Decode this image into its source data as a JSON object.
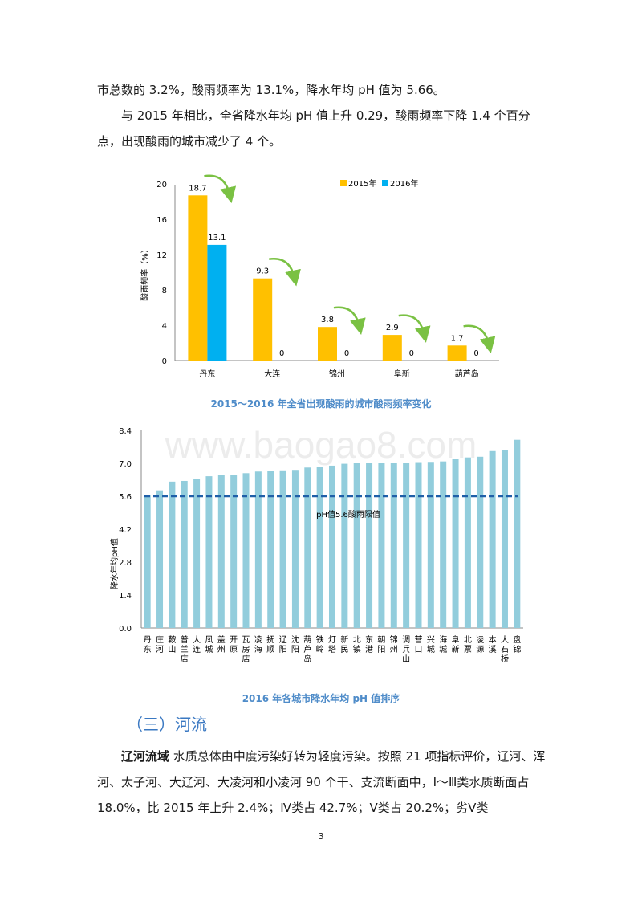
{
  "paragraphs": {
    "p1": "市总数的 3.2%，酸雨频率为 13.1%，降水年均 pH 值为 5.66。",
    "p2": "与 2015 年相比，全省降水年均 pH 值上升 0.29，酸雨频率下降 1.4 个百分点，出现酸雨的城市减少了 4 个。"
  },
  "captions": {
    "chart1": "2015～2016 年全省出现酸雨的城市酸雨频率变化",
    "chart2": "2016 年各城市降水年均 pH 值排序"
  },
  "section": {
    "title": "（三）河流"
  },
  "body": {
    "lead": "辽河流域",
    "text": "水质总体由中度污染好转为轻度污染。按照 21 项指标评价，辽河、浑河、太子河、大辽河、大凌河和小凌河 90 个干、支流断面中，Ⅰ～Ⅲ类水质断面占 18.0%，比 2015 年上升 2.4%；Ⅳ类占 42.7%；Ⅴ类占 20.2%；劣Ⅴ类"
  },
  "page_number": "3",
  "watermark": "www.baogao8.com",
  "colors": {
    "series_2015": "#ffc000",
    "series_2016": "#00b0f0",
    "arrow": "#7ac143",
    "ph_bar": "#92cddc",
    "threshold": "#1f5fa8",
    "caption": "#4f8cc9"
  },
  "chart_data": [
    {
      "type": "bar",
      "categories": [
        "丹东",
        "大连",
        "锦州",
        "阜新",
        "葫芦岛"
      ],
      "series": [
        {
          "name": "2015年",
          "values": [
            18.7,
            9.3,
            3.8,
            2.9,
            1.7
          ],
          "labels": [
            "18.7",
            "9.3",
            "3.8",
            "2.9",
            "1.7"
          ]
        },
        {
          "name": "2016年",
          "values": [
            13.1,
            0,
            0,
            0,
            0
          ],
          "labels": [
            "13.1",
            "0",
            "0",
            "0",
            "0"
          ]
        }
      ],
      "ylabel": "酸雨频率（%）",
      "ylim": [
        0,
        20
      ],
      "yticks": [
        "0",
        "4",
        "8",
        "12",
        "16",
        "20"
      ],
      "legend": "top-right",
      "grid": false
    },
    {
      "type": "bar",
      "categories": [
        "丹东",
        "庄河",
        "鞍山",
        "普兰店",
        "大连",
        "凤城",
        "盖州",
        "开原",
        "瓦房店",
        "凌海",
        "抚顺",
        "辽阳",
        "沈阳",
        "葫芦岛",
        "铁岭",
        "灯塔",
        "新民",
        "北镇",
        "东港",
        "朝阳",
        "锦州",
        "调兵山",
        "营口",
        "兴城",
        "海城",
        "阜新",
        "北票",
        "凌源",
        "本溪",
        "大石桥",
        "盘锦"
      ],
      "values": [
        5.66,
        5.85,
        6.22,
        6.25,
        6.32,
        6.45,
        6.5,
        6.52,
        6.58,
        6.65,
        6.68,
        6.7,
        6.72,
        6.82,
        6.85,
        6.9,
        6.98,
        7.0,
        7.0,
        7.02,
        7.03,
        7.03,
        7.05,
        7.06,
        7.08,
        7.2,
        7.25,
        7.28,
        7.52,
        7.55,
        8.0
      ],
      "ylabel": "降水年均pH值",
      "ylim": [
        0,
        8.4
      ],
      "yticks": [
        "0.0",
        "1.4",
        "2.8",
        "4.2",
        "5.6",
        "7.0",
        "8.4"
      ],
      "threshold": {
        "value": 5.6,
        "label": "pH值5.6酸雨限值"
      },
      "grid": false
    }
  ]
}
